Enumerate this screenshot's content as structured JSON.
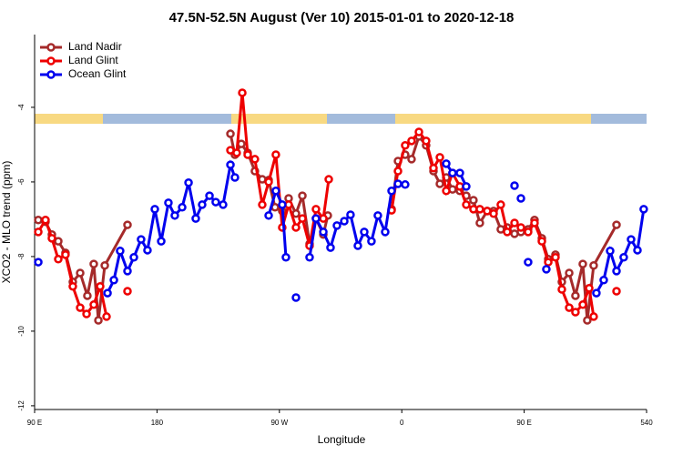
{
  "chart_data": {
    "type": "line",
    "title": "47.5N-52.5N August (Ver 10)   2015-01-01 to 2020-12-18",
    "xlabel": "Longitude",
    "ylabel": "XCO2 - MLO trend (ppm)",
    "xlim": [
      90,
      540
    ],
    "ylim": [
      -12.1,
      -2.05
    ],
    "xticks": [
      {
        "value": 90,
        "label": "90 E"
      },
      180,
      {
        "value": 270,
        "label": "90 W"
      },
      0,
      {
        "value": 450,
        "label": "90 E"
      },
      540
    ],
    "yticks": [
      -4,
      -6,
      -8,
      -10,
      -12
    ],
    "legend": "upper left",
    "series": [
      {
        "name": "Land Nadir",
        "color": "#a52a2a",
        "x": [
          92.7,
          98,
          102.7,
          107.4,
          112.7,
          118.1,
          123.5,
          128.8,
          133.5,
          136.9,
          141.6,
          158.3,
          null,
          234,
          237.3,
          242,
          246.7,
          252,
          257.4,
          262.1,
          266.8,
          272.1,
          276.8,
          282.2,
          286.9,
          292.2,
          296.9,
          302.3,
          305.6,
          null,
          352.5,
          357.2,
          362.5,
          367.2,
          372.6,
          377.9,
          383.3,
          388,
          392.7,
          397.3,
          402.7,
          407.4,
          412.7,
          417.4,
          422.8,
          427.5,
          432.8,
          437.5,
          442.9,
          447.6,
          452.9,
          457.6,
          463,
          467.7,
          473,
          477.7,
          483.1,
          487.7,
          493.1,
          496.4,
          501.1,
          517.9
        ],
        "values": [
          -7.02,
          -7.07,
          -7.41,
          -7.59,
          -7.9,
          -8.68,
          -8.44,
          -9.05,
          -8.2,
          -9.71,
          -8.24,
          -7.15,
          null,
          -4.71,
          -5.27,
          -4.98,
          -5.22,
          -5.71,
          -5.93,
          -5.95,
          -6.68,
          -6.78,
          -6.44,
          -6.85,
          -6.37,
          -7.66,
          -6.98,
          -7.41,
          -6.9,
          null,
          -6.73,
          -5.44,
          -5.27,
          -5.39,
          -4.78,
          -5.02,
          -5.71,
          -6.05,
          -5.88,
          -6.2,
          -6.24,
          -6.37,
          -6.49,
          -7.1,
          -6.78,
          -6.78,
          -7.27,
          -7.22,
          -7.39,
          -7.34,
          -7.27,
          -7.02,
          -7.51,
          -8.07,
          -7.95,
          -8.68,
          -8.44,
          -9.05,
          -8.2,
          -9.71,
          -8.24,
          -7.15
        ]
      },
      {
        "name": "Land Glint",
        "color": "#ee0000",
        "x": [
          92.7,
          98,
          102.7,
          107.4,
          112.7,
          118.1,
          123.5,
          128.2,
          133.5,
          138.2,
          142.9,
          null,
          158.3,
          null,
          234,
          238.6,
          242.7,
          246.7,
          252,
          257.4,
          262.1,
          267.4,
          272.1,
          276.8,
          282.2,
          286.9,
          292.2,
          296.9,
          302.3,
          306.3,
          null,
          352.5,
          357.2,
          362.5,
          367.2,
          372.6,
          377.9,
          383.3,
          388,
          392.7,
          397.3,
          402.7,
          407.4,
          412.7,
          417.4,
          422.8,
          427.5,
          432.8,
          437.5,
          442.9,
          447.6,
          452.9,
          457.6,
          463,
          467.7,
          473,
          477.7,
          483.1,
          487.7,
          493.1,
          497.8,
          501.1,
          null,
          517.9
        ],
        "values": [
          -7.34,
          -7.02,
          -7.51,
          -8.07,
          -7.95,
          -8.8,
          -9.37,
          -9.54,
          -9.29,
          -8.8,
          -9.61,
          null,
          -8.93,
          null,
          -5.15,
          -5.22,
          -3.61,
          -5.27,
          -5.39,
          -6.61,
          -6,
          -5.27,
          -7.22,
          -6.61,
          -7.22,
          -6.98,
          -7.71,
          -6.73,
          -6.98,
          -5.93,
          null,
          -6.76,
          -5.71,
          -5.02,
          -4.9,
          -4.66,
          -4.9,
          -5.63,
          -5.34,
          -6.24,
          -5.76,
          -6.12,
          -6.61,
          -6.73,
          -6.73,
          -6.78,
          -6.85,
          -6.61,
          -7.34,
          -7.1,
          -7.22,
          -7.34,
          -7.1,
          -7.59,
          -8.15,
          -8.02,
          -8.88,
          -9.37,
          -9.49,
          -9.29,
          -8.85,
          -9.61,
          null,
          -8.93
        ]
      },
      {
        "name": "Ocean Glint",
        "color": "#0000ee",
        "x": [
          92.7,
          null,
          143.6,
          148.3,
          152.9,
          158.3,
          163,
          168.3,
          173,
          178.4,
          183.1,
          188.4,
          193.1,
          198.5,
          203.2,
          208.5,
          213.2,
          218.6,
          223.2,
          228.6,
          234,
          237.3,
          null,
          262.1,
          267.4,
          272.1,
          274.8,
          null,
          282.2,
          null,
          292.2,
          296.9,
          302.3,
          307.6,
          312.3,
          317.7,
          322.3,
          327.7,
          332.4,
          337.7,
          342.4,
          347.8,
          352.5,
          357.2,
          362.5,
          null,
          392.7,
          397.3,
          402.7,
          407.4,
          null,
          442.9,
          null,
          447.6,
          null,
          452.9,
          null,
          466.3,
          null,
          503.1,
          508.5,
          513.2,
          517.9,
          523.2,
          528.6,
          533.3,
          537.9
        ],
        "values": [
          -8.15,
          null,
          -8.98,
          -8.63,
          -7.85,
          -8.39,
          -8.02,
          -7.54,
          -7.83,
          -6.73,
          -7.59,
          -6.56,
          -6.9,
          -6.68,
          -6.02,
          -6.98,
          -6.61,
          -6.37,
          -6.54,
          -6.61,
          -5.54,
          -5.88,
          null,
          -6.9,
          -6.24,
          -6.61,
          -8.02,
          null,
          -9.1,
          null,
          -8.02,
          -6.98,
          -7.34,
          -7.76,
          -7.17,
          -7.05,
          -6.88,
          -7.71,
          -7.34,
          -7.59,
          -6.9,
          -7.34,
          -6.24,
          -6.05,
          -6.07,
          null,
          -5.51,
          -5.76,
          -5.76,
          -6.12,
          null,
          -6.1,
          null,
          -6.44,
          null,
          -8.15,
          null,
          -8.34,
          null,
          -8.98,
          -8.63,
          -7.85,
          -8.39,
          -8.02,
          -7.54,
          -7.83,
          -6.73
        ]
      }
    ]
  }
}
